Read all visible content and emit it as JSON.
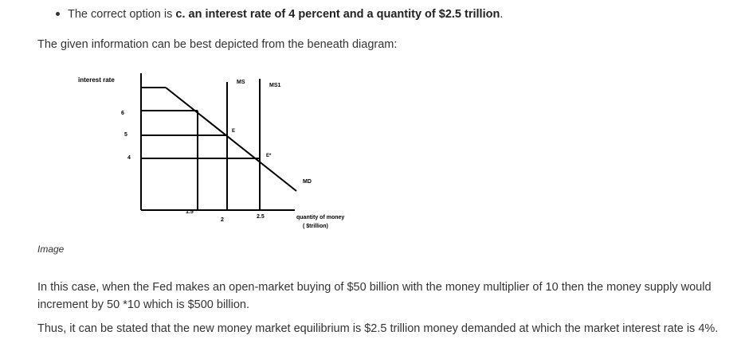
{
  "answer": {
    "prefix": "The correct option is ",
    "bold": "c. an interest rate of 4 percent and a quantity of $2.5 trillion",
    "suffix": "."
  },
  "intro": "The given information can be best depicted from the beneath diagram:",
  "diagram": {
    "y_axis_label": "interest rate",
    "x_axis_label_line1": "quantity of money",
    "x_axis_label_line2": "( $trillion)",
    "y_ticks": [
      "6",
      "5",
      "4"
    ],
    "x_ticks": [
      "1.5",
      "2",
      "2.5"
    ],
    "curve_labels": {
      "ms": "MS",
      "ms1": "MS1",
      "md": "MD"
    },
    "points": {
      "e": "E",
      "e_prime": "E*"
    }
  },
  "caption": "Image",
  "paragraph1": "In this case, when the Fed makes an open-market buying of $50 billion with the money multiplier of 10 then the money supply would increment by 50 *10 which is $500 billion.",
  "paragraph2": "Thus, it can be stated that the new money market equilibrium is $2.5 trillion money demanded at which the market interest rate is 4%."
}
